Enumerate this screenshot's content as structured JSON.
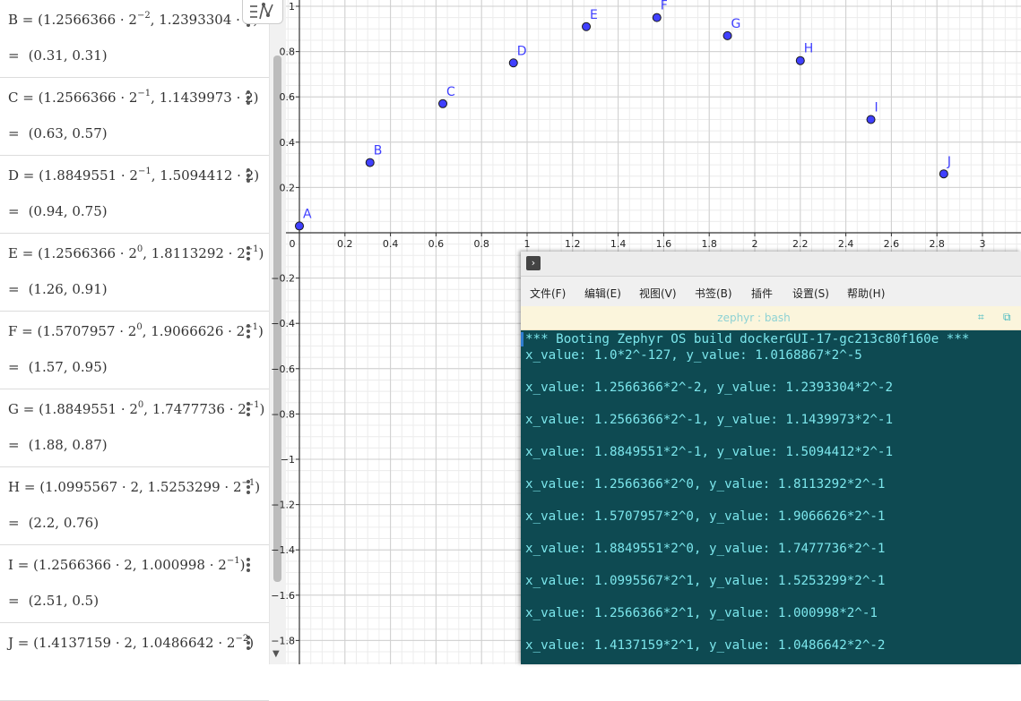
{
  "algebra": {
    "entries": [
      {
        "label": "B",
        "def_pre": "(1.2566366 · 2",
        "def_exp1": "−2",
        "def_mid": ", 1.2393304 · 2",
        "def_exp2": "",
        "def_post": ")",
        "value": "(0.31, 0.31)"
      },
      {
        "label": "C",
        "def_pre": "(1.2566366 · 2",
        "def_exp1": "−1",
        "def_mid": ", 1.1439973 · 2",
        "def_exp2": "",
        "def_post": ")",
        "value": "(0.63, 0.57)"
      },
      {
        "label": "D",
        "def_pre": "(1.8849551 · 2",
        "def_exp1": "−1",
        "def_mid": ", 1.5094412 · 2",
        "def_exp2": "",
        "def_post": ")",
        "value": "(0.94, 0.75)"
      },
      {
        "label": "E",
        "def_pre": "(1.2566366 · 2",
        "def_exp1": "0",
        "def_mid": ", 1.8113292 · 2",
        "def_exp2": "−1",
        "def_post": ")",
        "value": "(1.26, 0.91)"
      },
      {
        "label": "F",
        "def_pre": "(1.5707957 · 2",
        "def_exp1": "0",
        "def_mid": ", 1.9066626 · 2",
        "def_exp2": "−1",
        "def_post": ")",
        "value": "(1.57, 0.95)"
      },
      {
        "label": "G",
        "def_pre": "(1.8849551 · 2",
        "def_exp1": "0",
        "def_mid": ", 1.7477736 · 2",
        "def_exp2": "−1",
        "def_post": ")",
        "value": "(1.88, 0.87)"
      },
      {
        "label": "H",
        "def_pre": "(1.0995567 · 2",
        "def_exp1": "",
        "def_mid": ", 1.5253299 · 2",
        "def_exp2": "−1",
        "def_post": ")",
        "value": "(2.2, 0.76)"
      },
      {
        "label": "I",
        "def_pre": "(1.2566366 · 2",
        "def_exp1": "",
        "def_mid": ", 1.000998 · 2",
        "def_exp2": "−1",
        "def_post": ")",
        "value": "(2.51, 0.5)"
      },
      {
        "label": "J",
        "def_pre": "(1.4137159 · 2",
        "def_exp1": "",
        "def_mid": ", 1.0486642 · 2",
        "def_exp2": "−2",
        "def_post": ")",
        "value": ""
      }
    ]
  },
  "graph": {
    "grid": true,
    "x_tick_labels": [
      "0",
      "0.2",
      "0.4",
      "0.6",
      "0.8",
      "1",
      "1.2",
      "1.4",
      "1.6",
      "1.8",
      "2",
      "2.2",
      "2.4",
      "2.6",
      "2.8",
      "3"
    ],
    "y_tick_labels": [
      "1",
      "0.8",
      "0.6",
      "0.4",
      "0.2",
      "−0.2",
      "−0.4",
      "−0.6",
      "−0.8",
      "−1",
      "−1.2",
      "−1.4",
      "−1.6",
      "−1.8"
    ],
    "point_color": "#4040ff",
    "points": [
      {
        "label": "A",
        "x": 0.0,
        "y": 0.03
      },
      {
        "label": "B",
        "x": 0.31,
        "y": 0.31
      },
      {
        "label": "C",
        "x": 0.63,
        "y": 0.57
      },
      {
        "label": "D",
        "x": 0.94,
        "y": 0.75
      },
      {
        "label": "E",
        "x": 1.26,
        "y": 0.91
      },
      {
        "label": "F",
        "x": 1.57,
        "y": 0.95
      },
      {
        "label": "G",
        "x": 1.88,
        "y": 0.87
      },
      {
        "label": "H",
        "x": 2.2,
        "y": 0.76
      },
      {
        "label": "I",
        "x": 2.51,
        "y": 0.5
      },
      {
        "label": "J",
        "x": 2.83,
        "y": 0.26
      }
    ]
  },
  "terminal": {
    "menu": [
      "文件(F)",
      "编辑(E)",
      "视图(V)",
      "书签(B)",
      "插件",
      "设置(S)",
      "帮助(H)"
    ],
    "tab_title": "zephyr : bash",
    "background": "#0e4a52",
    "text_color": "#7ce6ec",
    "lines": [
      "*** Booting Zephyr OS build dockerGUI-17-gc213c80f160e ***",
      "x_value: 1.0*2^-127, y_value: 1.0168867*2^-5",
      "",
      "x_value: 1.2566366*2^-2, y_value: 1.2393304*2^-2",
      "",
      "x_value: 1.2566366*2^-1, y_value: 1.1439973*2^-1",
      "",
      "x_value: 1.8849551*2^-1, y_value: 1.5094412*2^-1",
      "",
      "x_value: 1.2566366*2^0, y_value: 1.8113292*2^-1",
      "",
      "x_value: 1.5707957*2^0, y_value: 1.9066626*2^-1",
      "",
      "x_value: 1.8849551*2^0, y_value: 1.7477736*2^-1",
      "",
      "x_value: 1.0995567*2^1, y_value: 1.5253299*2^-1",
      "",
      "x_value: 1.2566366*2^1, y_value: 1.000998*2^-1",
      "",
      "x_value: 1.4137159*2^1, y_value: 1.0486642*2^-2"
    ]
  }
}
